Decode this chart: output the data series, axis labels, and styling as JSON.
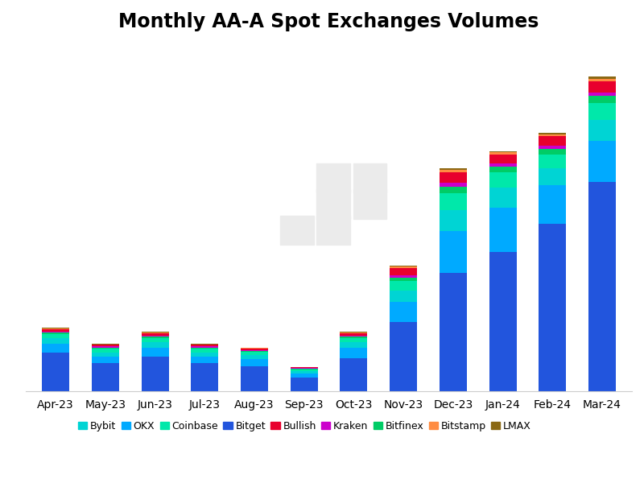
{
  "title": "Monthly AA-A Spot Exchanges Volumes",
  "background_color": "#ffffff",
  "months": [
    "Apr-23",
    "May-23",
    "Jun-23",
    "Jul-23",
    "Aug-23",
    "Sep-23",
    "Oct-23",
    "Nov-23",
    "Dec-23",
    "Jan-24",
    "Feb-24",
    "Mar-24"
  ],
  "exchanges": [
    "Bitget",
    "OKX",
    "Bybit",
    "Coinbase",
    "Bitfinex",
    "Kraken",
    "Bullish",
    "Bitstamp",
    "LMAX"
  ],
  "colors": {
    "Bitget": "#2255dd",
    "OKX": "#00aaff",
    "Bybit": "#00d4d4",
    "Coinbase": "#00e8aa",
    "Bitfinex": "#00cc66",
    "Kraken": "#cc00cc",
    "Bullish": "#e8002d",
    "Bitstamp": "#ff8c42",
    "LMAX": "#8b6914"
  },
  "data": {
    "Bitget": [
      0.28,
      0.2,
      0.25,
      0.2,
      0.18,
      0.1,
      0.24,
      0.5,
      0.85,
      1.0,
      1.2,
      1.5
    ],
    "OKX": [
      0.06,
      0.05,
      0.06,
      0.05,
      0.05,
      0.03,
      0.07,
      0.14,
      0.3,
      0.32,
      0.28,
      0.3
    ],
    "Bybit": [
      0.04,
      0.03,
      0.04,
      0.03,
      0.03,
      0.015,
      0.04,
      0.08,
      0.15,
      0.14,
      0.12,
      0.15
    ],
    "Coinbase": [
      0.03,
      0.025,
      0.03,
      0.025,
      0.022,
      0.012,
      0.03,
      0.07,
      0.12,
      0.11,
      0.1,
      0.12
    ],
    "Bitfinex": [
      0.012,
      0.01,
      0.012,
      0.01,
      0.009,
      0.005,
      0.012,
      0.025,
      0.05,
      0.045,
      0.04,
      0.05
    ],
    "Kraken": [
      0.008,
      0.006,
      0.008,
      0.006,
      0.006,
      0.003,
      0.008,
      0.016,
      0.025,
      0.022,
      0.02,
      0.025
    ],
    "Bullish": [
      0.015,
      0.012,
      0.018,
      0.012,
      0.011,
      0.006,
      0.018,
      0.055,
      0.075,
      0.06,
      0.07,
      0.08
    ],
    "Bitstamp": [
      0.006,
      0.005,
      0.006,
      0.005,
      0.004,
      0.002,
      0.005,
      0.012,
      0.02,
      0.018,
      0.016,
      0.02
    ],
    "LMAX": [
      0.003,
      0.002,
      0.003,
      0.002,
      0.002,
      0.001,
      0.003,
      0.006,
      0.012,
      0.01,
      0.01,
      0.013
    ]
  },
  "ylim": [
    0,
    2.5
  ],
  "title_fontsize": 17,
  "tick_fontsize": 10,
  "legend_fontsize": 9
}
